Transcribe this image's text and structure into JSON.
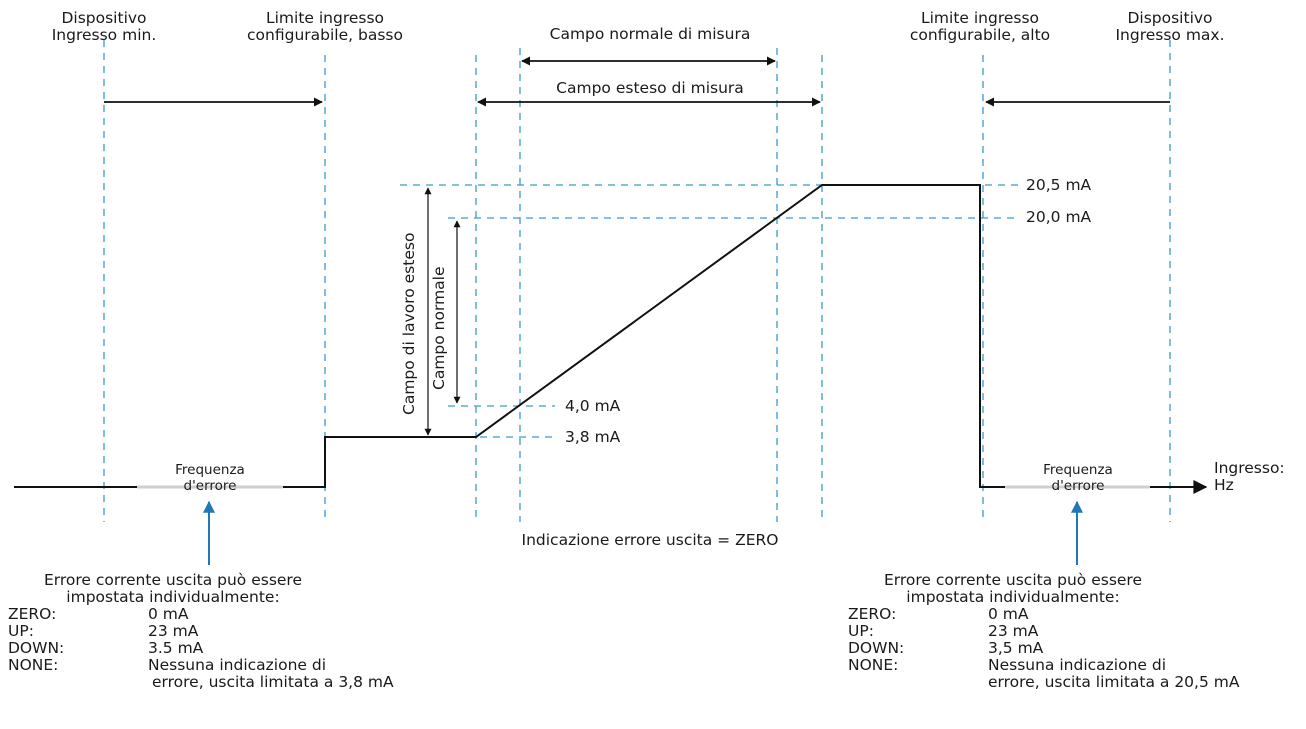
{
  "colors": {
    "guide": "#3b9ad0",
    "arrow_blue": "#1f78b8",
    "line": "#111111",
    "error_band": "#cfcfcf"
  },
  "labels": {
    "dev_min_1": "Dispositivo",
    "dev_min_2": "Ingresso min.",
    "lim_low_1": "Limite ingresso",
    "lim_low_2": "configurabile, basso",
    "normal_range": "Campo normale di misura",
    "extended_range": "Campo esteso di misura",
    "lim_high_1": "Limite ingresso",
    "lim_high_2": "configurabile, alto",
    "dev_max_1": "Dispositivo",
    "dev_max_2": "Ingresso max.",
    "val_205": "20,5 mA",
    "val_200": "20,0 mA",
    "val_40": "4,0 mA",
    "val_38": "3,8 mA",
    "extended_work": "Campo di lavoro esteso",
    "normal_work": "Campo normale",
    "err_freq_1": "Frequenza",
    "err_freq_2": "d'errore",
    "axis_1": "Ingresso:",
    "axis_2": "Hz",
    "output_error": "Indicazione errore uscita = ZERO"
  },
  "left_note": {
    "head_1": "Errore corrente uscita può essere",
    "head_2": "impostata individualmente:",
    "rows": [
      {
        "k": "ZERO:",
        "v": "0 mA"
      },
      {
        "k": "UP:",
        "v": "23 mA"
      },
      {
        "k": "DOWN:",
        "v": "3.5 mA"
      },
      {
        "k": "NONE:",
        "v": "Nessuna indicazione di"
      },
      {
        "k": "",
        "v": "errore, uscita limitata a 3,8 mA"
      }
    ]
  },
  "right_note": {
    "head_1": "Errore corrente uscita può essere",
    "head_2": "impostata individualmente:",
    "rows": [
      {
        "k": "ZERO:",
        "v": "0 mA"
      },
      {
        "k": "UP:",
        "v": "23 mA"
      },
      {
        "k": "DOWN:",
        "v": "3,5 mA"
      },
      {
        "k": "NONE:",
        "v": "Nessuna indicazione di"
      },
      {
        "k": "",
        "v": "errore, uscita limitata a 20,5 mA"
      }
    ]
  }
}
